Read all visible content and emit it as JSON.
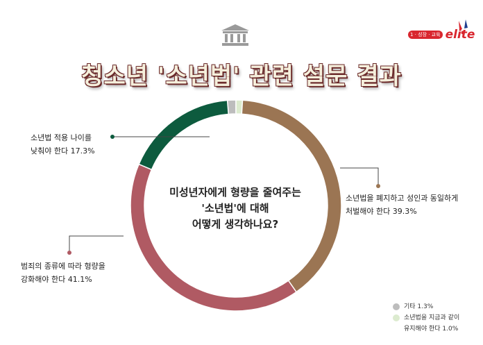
{
  "header": {
    "title": "청소년 '소년법' 관련 설문 결과",
    "brand_tag": "1 · 성장 · 교육",
    "brand_name": "elite",
    "logo_icon": "court-building-icon",
    "brand_icon": "sparkle-icon"
  },
  "center_question": [
    "미성년자에게 형량을 줄여주는",
    "'소년법'에 대해",
    "어떻게 생각하나요?"
  ],
  "chart_data": {
    "type": "pie",
    "style": "donut",
    "slices": [
      {
        "label": "기타",
        "value": 1.3,
        "color": "#bdbdbd",
        "text": "기타 1.3%"
      },
      {
        "label": "소년법을 지금과 같이 유지해야 한다",
        "value": 1.0,
        "color": "#dcebcf",
        "text_lines": [
          "소년법을 지금과 같이",
          "유지해야 한다 1.0%"
        ]
      },
      {
        "label": "소년법을 폐지하고 성인과 동일하게 처벌해야 한다",
        "value": 39.3,
        "color": "#9b7553",
        "text_lines": [
          "소년법을 폐지하고 성인과 동일하게",
          "처벌해야 한다 39.3%"
        ]
      },
      {
        "label": "범죄의 종류에 따라 형량을 강화해야 한다",
        "value": 41.1,
        "color": "#b05a63",
        "text_lines": [
          "범죄의 종류에 따라 형량을",
          "강화해야 한다 41.1%"
        ]
      },
      {
        "label": "소년법 적용 나이를 낮춰야 한다",
        "value": 17.3,
        "color": "#0d5b3e",
        "text_lines": [
          "소년법 적용 나이를",
          "낮춰야 한다 17.3%"
        ]
      }
    ]
  }
}
